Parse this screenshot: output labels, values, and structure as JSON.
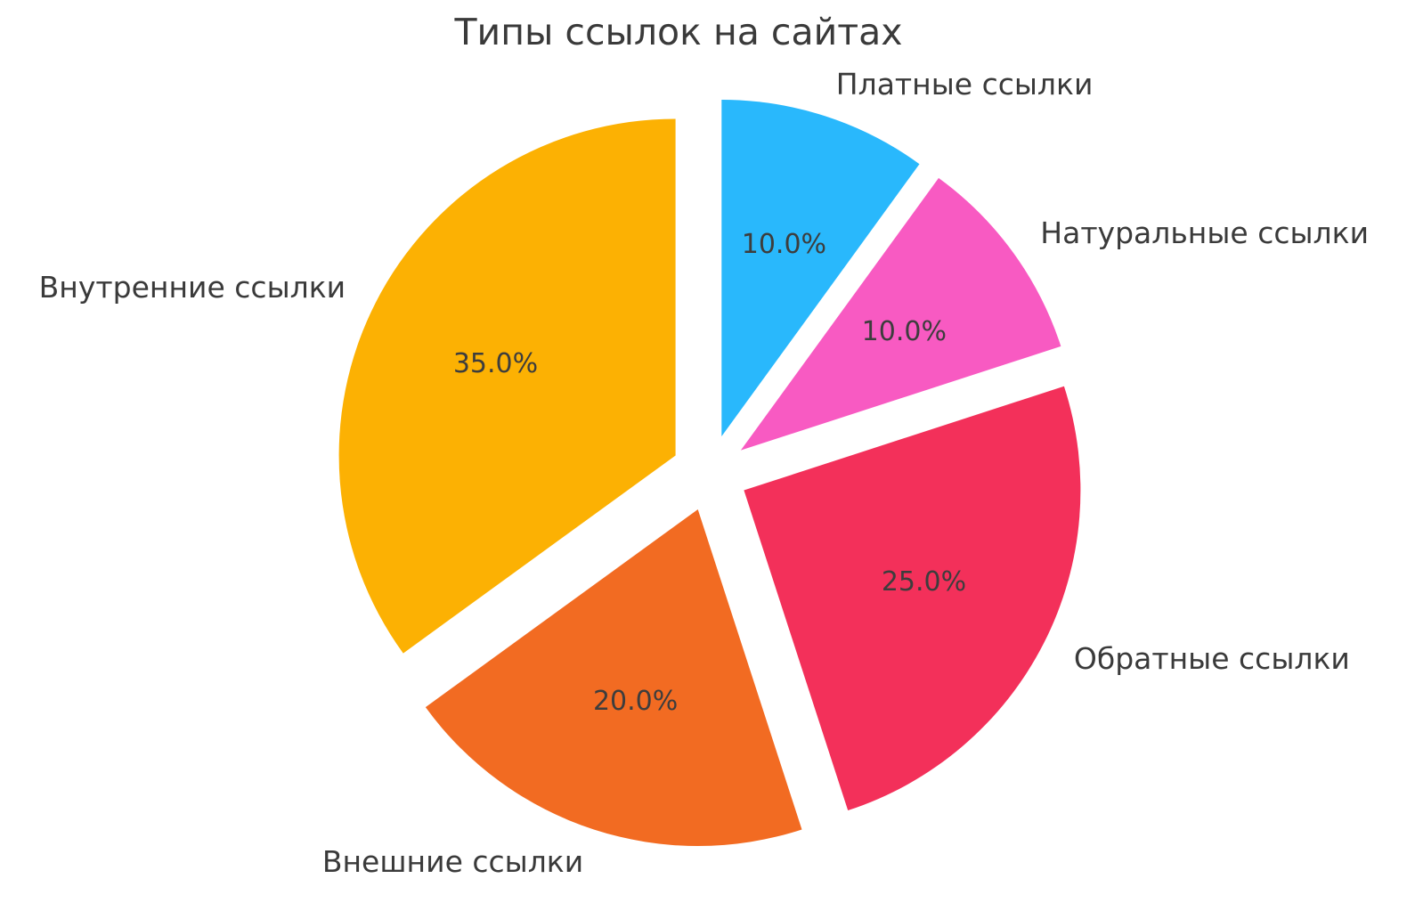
{
  "chart_data": {
    "type": "pie",
    "title": "Типы ссылок на сайтах",
    "slices": [
      {
        "label": "Платные ссылки",
        "value": 10.0,
        "pct_label": "10.0%",
        "color": "#29b8fc"
      },
      {
        "label": "Натуральные ссылки",
        "value": 10.0,
        "pct_label": "10.0%",
        "color": "#f85ac2"
      },
      {
        "label": "Обратные ссылки",
        "value": 25.0,
        "pct_label": "25.0%",
        "color": "#f3305a"
      },
      {
        "label": "Внешние ссылки",
        "value": 20.0,
        "pct_label": "20.0%",
        "color": "#f26b22"
      },
      {
        "label": "Внутренние ссылки",
        "value": 35.0,
        "pct_label": "35.0%",
        "color": "#fcb103"
      }
    ],
    "start_angle_deg": 90,
    "direction": "clockwise",
    "explode": 0.114,
    "pct_distance": 0.6,
    "label_distance": 1.1,
    "legend": "none",
    "grid": "off",
    "background": "#ffffff",
    "text_color": "#3a3a3a"
  }
}
